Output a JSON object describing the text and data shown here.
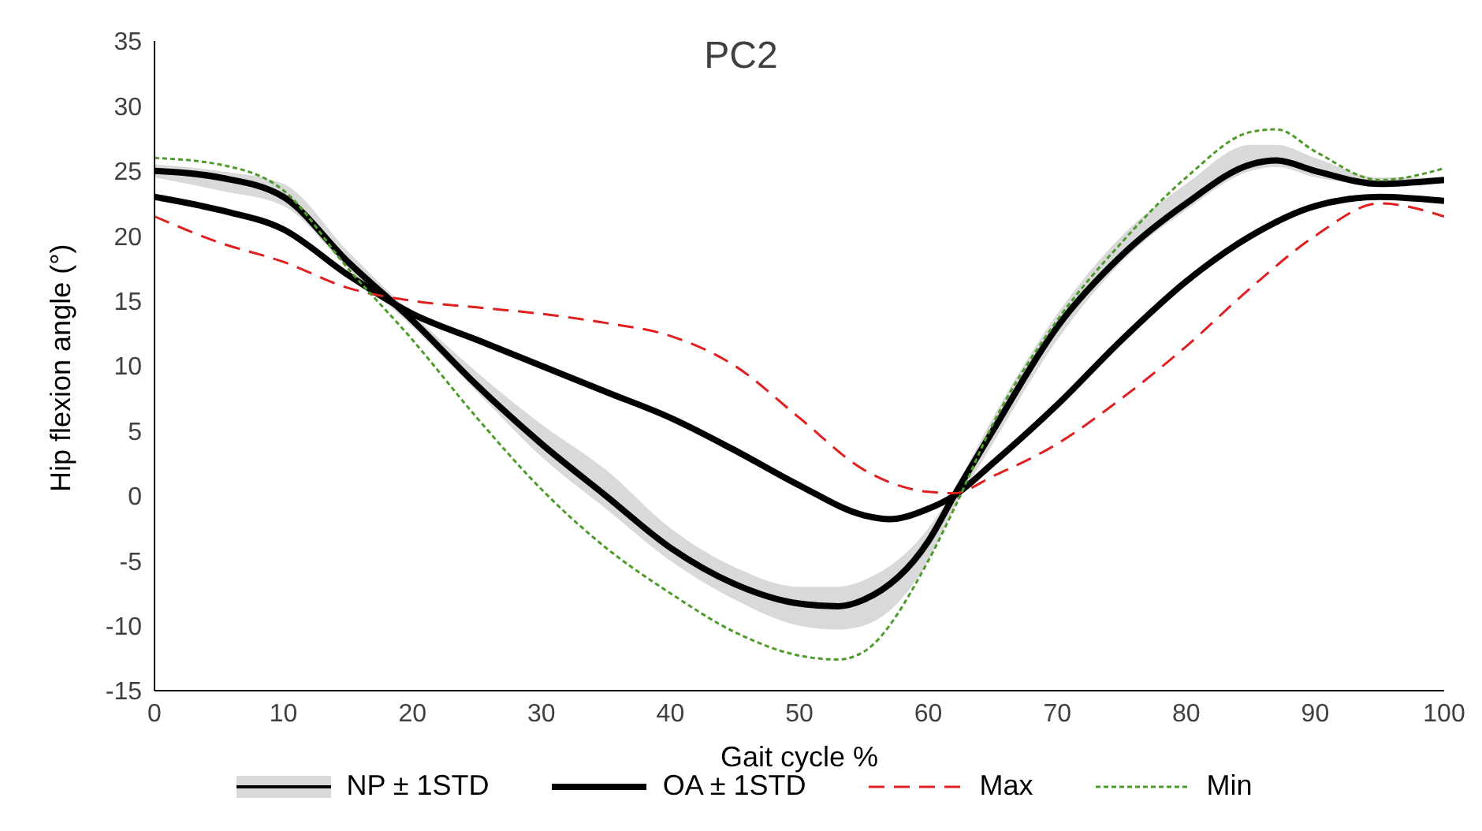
{
  "chart_data": {
    "type": "line",
    "title": "PC2",
    "xlabel": "Gait cycle  %",
    "ylabel": "Hip flexion angle (°)",
    "xlim": [
      0,
      100
    ],
    "xticks": [
      0,
      10,
      20,
      30,
      40,
      50,
      60,
      70,
      80,
      90,
      100
    ],
    "ylim": [
      -15,
      35
    ],
    "yticks": [
      -15,
      -10,
      -5,
      0,
      5,
      10,
      15,
      20,
      25,
      30,
      35
    ],
    "grid": false,
    "legend": "bottom",
    "marker": "none",
    "series": [
      {
        "name": "NP ± 1STD",
        "color": "#000000",
        "line_style": "solid",
        "x": [
          0,
          5,
          10,
          15,
          20,
          25,
          30,
          35,
          40,
          45,
          50,
          53,
          55,
          60,
          62,
          65,
          70,
          75,
          80,
          85,
          87,
          90,
          95,
          100
        ],
        "values": [
          25,
          24.5,
          23,
          18,
          13.5,
          8.5,
          4,
          0,
          -4,
          -6.8,
          -8.3,
          -8.5,
          -8,
          -3.5,
          0,
          5,
          13,
          18.5,
          22.5,
          25.5,
          25.8,
          25,
          24,
          24.3
        ],
        "lower": [
          24.5,
          23.5,
          22.3,
          17.5,
          13,
          8,
          3,
          -1,
          -5,
          -8,
          -10,
          -10.3,
          -10,
          -5,
          -1,
          4,
          12,
          18,
          22,
          25,
          25.3,
          24.5,
          24,
          24
        ],
        "upper": [
          25.5,
          25,
          24,
          18.8,
          14,
          9.5,
          5.5,
          2,
          -2.5,
          -5.5,
          -7,
          -7,
          -6.5,
          -2.5,
          0.5,
          6,
          14,
          20,
          24,
          27,
          27,
          26,
          24.5,
          24.5
        ]
      },
      {
        "name": "OA ± 1STD",
        "color": "#000000",
        "line_style": "solid",
        "x": [
          0,
          5,
          10,
          15,
          20,
          25,
          30,
          35,
          40,
          45,
          50,
          55,
          57,
          60,
          62,
          65,
          70,
          75,
          80,
          85,
          90,
          95,
          100
        ],
        "values": [
          23,
          22,
          20.5,
          17,
          14,
          12,
          10,
          8,
          6,
          3.5,
          0.8,
          -1.5,
          -1.8,
          -1,
          0,
          2.5,
          7,
          12,
          16.5,
          20,
          22.3,
          23,
          22.7
        ]
      },
      {
        "name": "Max",
        "color": "#e02020",
        "line_style": "dashed",
        "x": [
          0,
          5,
          10,
          15,
          20,
          25,
          30,
          35,
          40,
          45,
          50,
          55,
          60,
          62,
          65,
          70,
          75,
          80,
          85,
          90,
          95,
          100
        ],
        "values": [
          21.5,
          19.5,
          18,
          16,
          15,
          14.5,
          14,
          13.3,
          12.3,
          10,
          6,
          2,
          0.3,
          0.2,
          1.5,
          4,
          7.5,
          11.5,
          16,
          20,
          22.5,
          21.5
        ]
      },
      {
        "name": "Min",
        "color": "#4e9a2a",
        "line_style": "dotted",
        "x": [
          0,
          5,
          10,
          15,
          20,
          25,
          30,
          35,
          40,
          45,
          50,
          53,
          55,
          60,
          62,
          65,
          70,
          75,
          80,
          85,
          87,
          90,
          95,
          100
        ],
        "values": [
          26,
          25.5,
          23.5,
          17.5,
          12,
          6,
          0.5,
          -4,
          -7.5,
          -10.5,
          -12.3,
          -12.6,
          -12,
          -5,
          -1,
          5.5,
          13.5,
          19.5,
          24.5,
          28,
          28.2,
          26.5,
          24.3,
          25.2
        ]
      }
    ]
  }
}
